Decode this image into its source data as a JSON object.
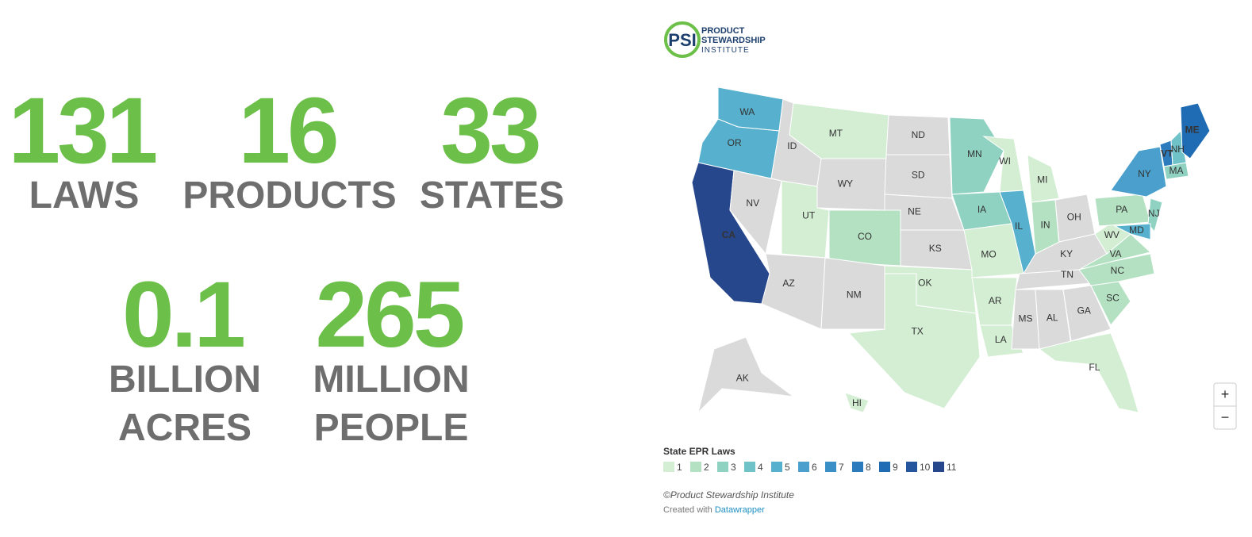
{
  "stats": [
    {
      "value": 131,
      "label": [
        "LAWS"
      ]
    },
    {
      "value": 16,
      "label": [
        "PRODUCTS"
      ]
    },
    {
      "value": 33,
      "label": [
        "STATES"
      ]
    },
    {
      "value": 0.1,
      "label": [
        "BILLION",
        "ACRES"
      ]
    },
    {
      "value": 265,
      "label": [
        "MILLION",
        "PEOPLE"
      ]
    }
  ],
  "logo": {
    "mark": "PSI",
    "lines": [
      "PRODUCT",
      "STEWARDSHIP",
      "INSTITUTE"
    ]
  },
  "map": {
    "legend_title": "State EPR Laws",
    "no_data_color": "#dadada",
    "legend": [
      {
        "value": 1,
        "color": "#d3eed3"
      },
      {
        "value": 2,
        "color": "#b3e1c1"
      },
      {
        "value": 3,
        "color": "#8fd2c2"
      },
      {
        "value": 4,
        "color": "#6fc3c8"
      },
      {
        "value": 5,
        "color": "#57b0cd"
      },
      {
        "value": 6,
        "color": "#4a9fcc"
      },
      {
        "value": 7,
        "color": "#3a8fc6"
      },
      {
        "value": 8,
        "color": "#2b7bbd"
      },
      {
        "value": 9,
        "color": "#1f6cb4"
      },
      {
        "value": 10,
        "color": "#25569d"
      },
      {
        "value": 11,
        "color": "#27478c"
      }
    ],
    "states": [
      {
        "label": "WA",
        "laws": 5
      },
      {
        "label": "OR",
        "laws": 5
      },
      {
        "label": "CA",
        "laws": 11
      },
      {
        "label": "NV",
        "laws": null
      },
      {
        "label": "ID",
        "laws": null
      },
      {
        "label": "MT",
        "laws": 1
      },
      {
        "label": "WY",
        "laws": null
      },
      {
        "label": "UT",
        "laws": 1
      },
      {
        "label": "CO",
        "laws": 2
      },
      {
        "label": "AZ",
        "laws": null
      },
      {
        "label": "NM",
        "laws": null
      },
      {
        "label": "ND",
        "laws": null
      },
      {
        "label": "SD",
        "laws": null
      },
      {
        "label": "NE",
        "laws": null
      },
      {
        "label": "KS",
        "laws": null
      },
      {
        "label": "OK",
        "laws": 1
      },
      {
        "label": "TX",
        "laws": 1
      },
      {
        "label": "MN",
        "laws": 3
      },
      {
        "label": "IA",
        "laws": 3
      },
      {
        "label": "MO",
        "laws": 1
      },
      {
        "label": "AR",
        "laws": 1
      },
      {
        "label": "LA",
        "laws": 1
      },
      {
        "label": "WI",
        "laws": 1
      },
      {
        "label": "IL",
        "laws": 5
      },
      {
        "label": "MI",
        "laws": 1
      },
      {
        "label": "IN",
        "laws": 2
      },
      {
        "label": "OH",
        "laws": null
      },
      {
        "label": "KY",
        "laws": null
      },
      {
        "label": "TN",
        "laws": null
      },
      {
        "label": "MS",
        "laws": null
      },
      {
        "label": "AL",
        "laws": null
      },
      {
        "label": "GA",
        "laws": null
      },
      {
        "label": "FL",
        "laws": 1
      },
      {
        "label": "SC",
        "laws": 2
      },
      {
        "label": "NC",
        "laws": 2
      },
      {
        "label": "VA",
        "laws": 2
      },
      {
        "label": "WV",
        "laws": 1
      },
      {
        "label": "PA",
        "laws": 2
      },
      {
        "label": "NY",
        "laws": 6
      },
      {
        "label": "NJ",
        "laws": 3
      },
      {
        "label": "MD",
        "laws": 5
      },
      {
        "label": "VT",
        "laws": 8
      },
      {
        "label": "NH",
        "laws": 4
      },
      {
        "label": "ME",
        "laws": 9
      },
      {
        "label": "MA",
        "laws": 3
      },
      {
        "label": "AK",
        "laws": null
      },
      {
        "label": "HI",
        "laws": 1
      }
    ],
    "zoom": [
      "+",
      "−"
    ]
  },
  "footer": {
    "source": "©Product Stewardship Institute",
    "created": "Created with",
    "tool": "Datawrapper"
  }
}
